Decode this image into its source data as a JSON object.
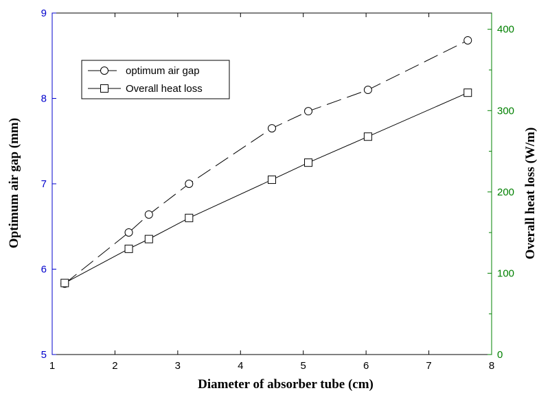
{
  "chart_data": {
    "type": "line",
    "title": "",
    "xlabel": "Diameter of absorber tube (cm)",
    "ylabel_left": "Optimum air gap (mm)",
    "ylabel_right": "Overall heat loss (W/m)",
    "xlim": [
      1,
      8
    ],
    "ylim_left": [
      5,
      9
    ],
    "ylim_right": [
      0,
      420
    ],
    "x_ticks": [
      "1",
      "2",
      "3",
      "4",
      "5",
      "6",
      "7",
      "8"
    ],
    "y_left_ticks": [
      "5",
      "6",
      "7",
      "8",
      "9"
    ],
    "y_right_ticks": [
      "0",
      "100",
      "200",
      "300",
      "400"
    ],
    "legend_position": "upper-left",
    "grid": false,
    "colors": {
      "left_axis": "#0000cc",
      "right_axis": "#008000",
      "series": "#000000"
    },
    "series": [
      {
        "name": "optimum air gap",
        "axis": "left",
        "marker": "circle",
        "line_style": "dashed",
        "x": [
          1.2,
          2.22,
          2.54,
          3.18,
          4.5,
          5.08,
          6.03,
          7.62
        ],
        "y": [
          5.83,
          6.43,
          6.64,
          7.0,
          7.65,
          7.85,
          8.1,
          8.68
        ]
      },
      {
        "name": "Overall heat loss",
        "axis": "right",
        "marker": "square",
        "line_style": "solid",
        "x": [
          1.2,
          2.22,
          2.54,
          3.18,
          4.5,
          5.08,
          6.03,
          7.62
        ],
        "y": [
          88,
          130,
          142,
          168,
          215,
          236,
          268,
          322
        ]
      }
    ]
  }
}
